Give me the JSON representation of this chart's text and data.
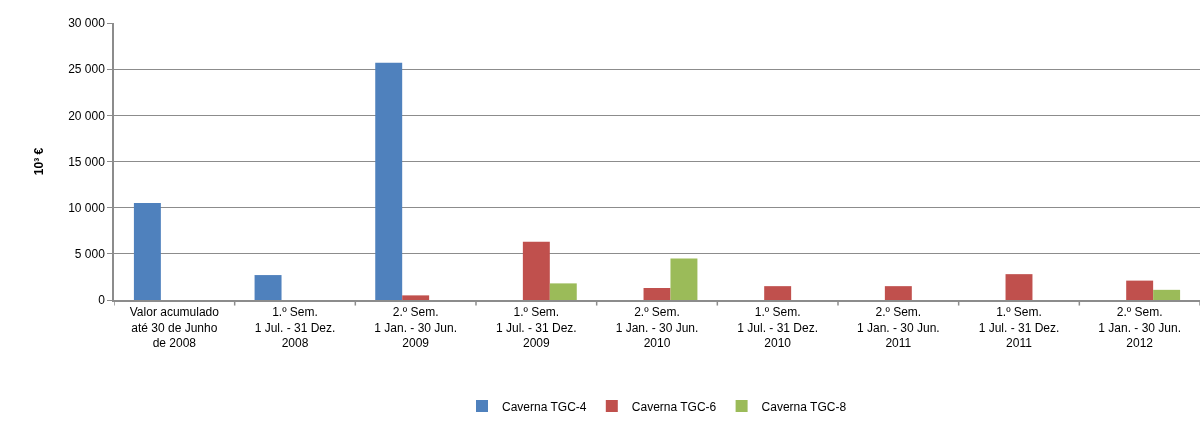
{
  "chart_data": {
    "type": "bar",
    "ylabel": "10³ €",
    "categories": [
      "Valor acumulado\naté 30 de Junho\nde 2008",
      "1.º Sem.\n1 Jul. - 31 Dez.\n2008",
      "2.º Sem.\n1 Jan. - 30 Jun.\n2009",
      "1.º Sem.\n1 Jul. - 31 Dez.\n2009",
      "2.º Sem.\n1 Jan. - 30 Jun.\n2010",
      "1.º Sem.\n1 Jul. - 31 Dez.\n2010",
      "2.º Sem.\n1 Jan. - 30 Jun.\n2011",
      "1.º Sem.\n1 Jul. - 31 Dez.\n2011",
      "2.º Sem.\n1 Jan. - 30 Jun.\n2012"
    ],
    "series": [
      {
        "name": "Caverna TGC-4",
        "color": "#4f81bd",
        "values": [
          10500,
          2700,
          25700,
          null,
          null,
          null,
          null,
          null,
          null
        ]
      },
      {
        "name": "Caverna TGC-6",
        "color": "#c0504d",
        "values": [
          null,
          null,
          500,
          6300,
          1300,
          1500,
          1500,
          2800,
          2100
        ]
      },
      {
        "name": "Caverna TGC-8",
        "color": "#9bbb59",
        "values": [
          null,
          null,
          null,
          1800,
          4500,
          null,
          null,
          null,
          1100
        ]
      }
    ],
    "ylim": [
      0,
      30000
    ],
    "yticks": [
      0,
      {
        "value": 5000,
        "label": "5 000"
      },
      {
        "value": 10000,
        "label": "10 000"
      },
      {
        "value": 15000,
        "label": "15 000"
      },
      {
        "value": 20000,
        "label": "20 000"
      },
      {
        "value": 25000,
        "label": "25 000"
      },
      {
        "value": 30000,
        "label": "30 000"
      }
    ],
    "grid": "y",
    "legend": "bottom"
  }
}
